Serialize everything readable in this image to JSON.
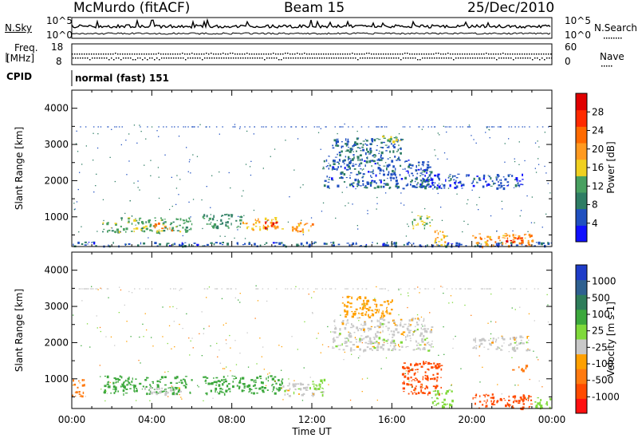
{
  "header": {
    "station": "McMurdo (fitACF)",
    "beam": "Beam 15",
    "date": "25/Dec/2010"
  },
  "strips": {
    "noise_left_label": "N.Sky",
    "noise_right_label": "N.Search",
    "noise_left_ticks": [
      "10^5",
      "10^0"
    ],
    "noise_right_ticks": [
      "10^5",
      "10^0"
    ],
    "freq_label_line1": "Freq.",
    "freq_label_line2": "[MHz]",
    "freq_ticks": [
      "18",
      "8"
    ],
    "nave_label": "Nave",
    "nave_ticks": [
      "60",
      "0"
    ],
    "cpid_label": "CPID",
    "cpid_value": "normal (fast) 151"
  },
  "colors": {
    "power_scale": [
      "#1010ff",
      "#2050c0",
      "#2e7d64",
      "#48a060",
      "#f0d020",
      "#ff9a20",
      "#ff6a00",
      "#ff2a00",
      "#e00000"
    ],
    "velocity_scale": [
      "#1e3cc8",
      "#2e6090",
      "#2e7d5a",
      "#3ca83c",
      "#7fd93a",
      "#c8c8c8",
      "#ffa000",
      "#ff7a10",
      "#ff4a00",
      "#ff1010"
    ]
  },
  "chart_data": [
    {
      "type": "heatmap",
      "title": "Power",
      "ylabel": "Slant Range [km]",
      "xlabel": "Time UT",
      "ylim": [
        180,
        4500
      ],
      "yticks": [
        "1000",
        "2000",
        "3000",
        "4000"
      ],
      "xticks": [
        "00:00",
        "04:00",
        "08:00",
        "12:00",
        "16:00",
        "20:00",
        "00:00"
      ],
      "colorbar": {
        "label": "Power [dB]",
        "ticks": [
          "4",
          "8",
          "12",
          "16",
          "20",
          "24",
          "28"
        ]
      },
      "echo_regions": [
        {
          "t_start": 0.0,
          "t_end": 24.0,
          "range_start": 200,
          "range_end": 320,
          "value": 6
        },
        {
          "t_start": 1.5,
          "t_end": 6.0,
          "range_start": 600,
          "range_end": 1000,
          "value": 12
        },
        {
          "t_start": 4.0,
          "t_end": 5.0,
          "range_start": 650,
          "range_end": 850,
          "value": 22
        },
        {
          "t_start": 6.5,
          "t_end": 8.5,
          "range_start": 700,
          "range_end": 1100,
          "value": 10
        },
        {
          "t_start": 8.5,
          "t_end": 10.5,
          "range_start": 650,
          "range_end": 1000,
          "value": 18
        },
        {
          "t_start": 9.6,
          "t_end": 10.2,
          "range_start": 700,
          "range_end": 900,
          "value": 28
        },
        {
          "t_start": 11.0,
          "t_end": 12.0,
          "range_start": 600,
          "range_end": 900,
          "value": 20
        },
        {
          "t_start": 12.5,
          "t_end": 18.0,
          "range_start": 1800,
          "range_end": 2600,
          "value": 6
        },
        {
          "t_start": 13.0,
          "t_end": 16.5,
          "range_start": 2600,
          "range_end": 3200,
          "value": 7
        },
        {
          "t_start": 15.5,
          "t_end": 16.5,
          "range_start": 3100,
          "range_end": 3300,
          "value": 14
        },
        {
          "t_start": 17.0,
          "t_end": 18.0,
          "range_start": 700,
          "range_end": 1100,
          "value": 14
        },
        {
          "t_start": 18.0,
          "t_end": 18.7,
          "range_start": 200,
          "range_end": 650,
          "value": 18
        },
        {
          "t_start": 20.0,
          "t_end": 23.0,
          "range_start": 200,
          "range_end": 550,
          "value": 20
        },
        {
          "t_start": 21.5,
          "t_end": 22.5,
          "range_start": 250,
          "range_end": 450,
          "value": 26
        },
        {
          "t_start": 17.5,
          "t_end": 22.5,
          "range_start": 1800,
          "range_end": 2200,
          "value": 5
        }
      ]
    },
    {
      "type": "heatmap",
      "title": "Velocity",
      "ylabel": "Slant Range [km]",
      "xlabel": "Time UT",
      "ylim": [
        180,
        4500
      ],
      "yticks": [
        "1000",
        "2000",
        "3000",
        "4000"
      ],
      "xticks": [
        "00:00",
        "04:00",
        "08:00",
        "12:00",
        "16:00",
        "20:00",
        "00:00"
      ],
      "colorbar": {
        "label": "Velocity [m s-1]",
        "ticks": [
          "1000",
          "500",
          "100",
          "25",
          "-25",
          "-100",
          "-500",
          "-1000"
        ]
      },
      "echo_regions": [
        {
          "t_start": 0.0,
          "t_end": 0.6,
          "range_start": 500,
          "range_end": 1000,
          "value": -200
        },
        {
          "t_start": 1.5,
          "t_end": 6.0,
          "range_start": 600,
          "range_end": 1100,
          "value": 200
        },
        {
          "t_start": 3.5,
          "t_end": 5.5,
          "range_start": 600,
          "range_end": 800,
          "value": 0
        },
        {
          "t_start": 6.5,
          "t_end": 10.5,
          "range_start": 600,
          "range_end": 1100,
          "value": 200
        },
        {
          "t_start": 10.5,
          "t_end": 12.5,
          "range_start": 550,
          "range_end": 900,
          "value": 0
        },
        {
          "t_start": 12.0,
          "t_end": 12.6,
          "range_start": 550,
          "range_end": 1000,
          "value": 60
        },
        {
          "t_start": 13.0,
          "t_end": 18.0,
          "range_start": 1800,
          "range_end": 2700,
          "value": 0
        },
        {
          "t_start": 13.5,
          "t_end": 16.0,
          "range_start": 2700,
          "range_end": 3300,
          "value": -60
        },
        {
          "t_start": 16.5,
          "t_end": 18.5,
          "range_start": 600,
          "range_end": 1500,
          "value": -300
        },
        {
          "t_start": 18.0,
          "t_end": 19.0,
          "range_start": 200,
          "range_end": 700,
          "value": 60
        },
        {
          "t_start": 20.0,
          "t_end": 23.0,
          "range_start": 200,
          "range_end": 600,
          "value": -300
        },
        {
          "t_start": 23.0,
          "t_end": 24.0,
          "range_start": 200,
          "range_end": 500,
          "value": 60
        },
        {
          "t_start": 20.0,
          "t_end": 23.0,
          "range_start": 1800,
          "range_end": 2200,
          "value": 0
        },
        {
          "t_start": 22.0,
          "t_end": 22.7,
          "range_start": 1250,
          "range_end": 1400,
          "value": -200
        }
      ]
    }
  ]
}
